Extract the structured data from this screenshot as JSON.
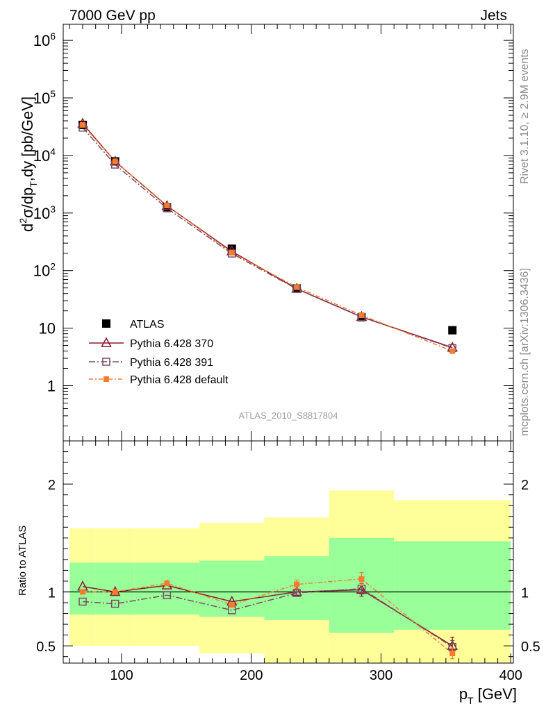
{
  "header": {
    "left": "7000 GeV pp",
    "right": "Jets"
  },
  "side_text": {
    "upper": "Rivet 3.1.10, ≥ 2.9M events",
    "lower": "mcplots.cern.ch [arXiv:1306.3436]"
  },
  "watermark": "ATLAS_2010_S8817804",
  "colors": {
    "data": "#000000",
    "p370": "#8b1a2b",
    "p391": "#7a4a68",
    "pdef": "#f47b30",
    "band_inner": "#99ff99",
    "band_outer": "#ffff99"
  },
  "chart_data": [
    {
      "type": "line",
      "yscale": "log",
      "ylabel_parts": {
        "d": "d",
        "sup2": "2",
        "sigma": "σ/dp",
        "subT": "T",
        "rest": ",dy [pb/GeV]"
      },
      "xlim": [
        55,
        402
      ],
      "ylim": [
        0.11,
        1900000
      ],
      "y_ticks": [
        {
          "value": 1,
          "label": "1"
        },
        {
          "value": 10,
          "label": "10"
        },
        {
          "value": 100,
          "label": "10",
          "sup": "2"
        },
        {
          "value": 1000,
          "label": "10",
          "sup": "3"
        },
        {
          "value": 10000,
          "label": "10",
          "sup": "4"
        },
        {
          "value": 100000,
          "label": "10",
          "sup": "5"
        },
        {
          "value": 1000000,
          "label": "10",
          "sup": "6"
        }
      ],
      "x_bins": [
        [
          60,
          80
        ],
        [
          80,
          110
        ],
        [
          110,
          160
        ],
        [
          160,
          210
        ],
        [
          210,
          260
        ],
        [
          260,
          310
        ],
        [
          310,
          400
        ]
      ],
      "x": [
        70,
        95,
        135,
        185,
        235,
        285,
        355
      ],
      "series": [
        {
          "name": "ATLAS",
          "key": "data",
          "marker": "filled-square",
          "values": [
            34000,
            7900,
            1250,
            240,
            49,
            15.5,
            9.2
          ]
        },
        {
          "name": "Pythia 6.428 370",
          "key": "p370",
          "marker": "open-triangle",
          "values": [
            35800,
            7880,
            1330,
            216,
            48.5,
            15.7,
            4.6
          ]
        },
        {
          "name": "Pythia 6.428 391",
          "key": "p391",
          "marker": "open-square",
          "values": [
            30500,
            6950,
            1210,
            198,
            48,
            15.6,
            4.5
          ]
        },
        {
          "name": "Pythia 6.428 default",
          "key": "pdef",
          "marker": "filled-small-square",
          "values": [
            34000,
            7880,
            1350,
            205,
            51.5,
            16.8,
            4.0
          ]
        }
      ]
    },
    {
      "type": "line",
      "ylabel": "Ratio to ATLAS",
      "xlabel_parts": {
        "p": "p",
        "subT": "T",
        "rest": " [GeV]"
      },
      "xlim": [
        55,
        402
      ],
      "ylim": [
        0.34,
        2.4
      ],
      "x_ticks": [
        {
          "value": 100,
          "label": "100"
        },
        {
          "value": 200,
          "label": "200"
        },
        {
          "value": 300,
          "label": "300"
        },
        {
          "value": 400,
          "label": "400"
        }
      ],
      "y_ticks": [
        {
          "value": 0.5,
          "label": "0.5"
        },
        {
          "value": 1,
          "label": "1"
        },
        {
          "value": 2,
          "label": "2"
        }
      ],
      "bands": [
        {
          "lo": 60,
          "hi": 80,
          "inner": [
            0.79,
            1.27
          ],
          "outer": [
            0.5,
            1.59
          ]
        },
        {
          "lo": 80,
          "hi": 110,
          "inner": [
            0.79,
            1.27
          ],
          "outer": [
            0.5,
            1.59
          ]
        },
        {
          "lo": 110,
          "hi": 160,
          "inner": [
            0.79,
            1.27
          ],
          "outer": [
            0.5,
            1.59
          ]
        },
        {
          "lo": 160,
          "hi": 210,
          "inner": [
            0.77,
            1.29
          ],
          "outer": [
            0.43,
            1.64
          ]
        },
        {
          "lo": 210,
          "hi": 260,
          "inner": [
            0.74,
            1.33
          ],
          "outer": [
            0.34,
            1.69
          ]
        },
        {
          "lo": 260,
          "hi": 310,
          "inner": [
            0.62,
            1.5
          ],
          "outer": [
            0.34,
            1.94
          ]
        },
        {
          "lo": 310,
          "hi": 400,
          "inner": [
            0.65,
            1.47
          ],
          "outer": [
            0.34,
            1.85
          ]
        }
      ],
      "reference": 1,
      "x": [
        70,
        95,
        135,
        185,
        235,
        285,
        355
      ],
      "series": [
        {
          "name": "Pythia 6.428 370",
          "key": "p370",
          "marker": "open-triangle",
          "values": [
            1.05,
            1.0,
            1.06,
            0.91,
            1.0,
            1.02,
            0.5
          ],
          "errors": [
            0.01,
            0.01,
            0.01,
            0.01,
            0.03,
            0.06,
            0.08
          ]
        },
        {
          "name": "Pythia 6.428 391",
          "key": "p391",
          "marker": "open-square",
          "values": [
            0.91,
            0.89,
            0.97,
            0.83,
            0.99,
            1.03,
            0.49
          ],
          "errors": [
            0.01,
            0.01,
            0.01,
            0.01,
            0.03,
            0.05,
            0.06
          ]
        },
        {
          "name": "Pythia 6.428 default",
          "key": "pdef",
          "marker": "filled-small-square",
          "values": [
            1.0,
            1.0,
            1.08,
            0.88,
            1.07,
            1.12,
            0.43
          ],
          "errors": [
            0.01,
            0.01,
            0.01,
            0.01,
            0.04,
            0.06,
            0.05
          ]
        }
      ]
    }
  ]
}
